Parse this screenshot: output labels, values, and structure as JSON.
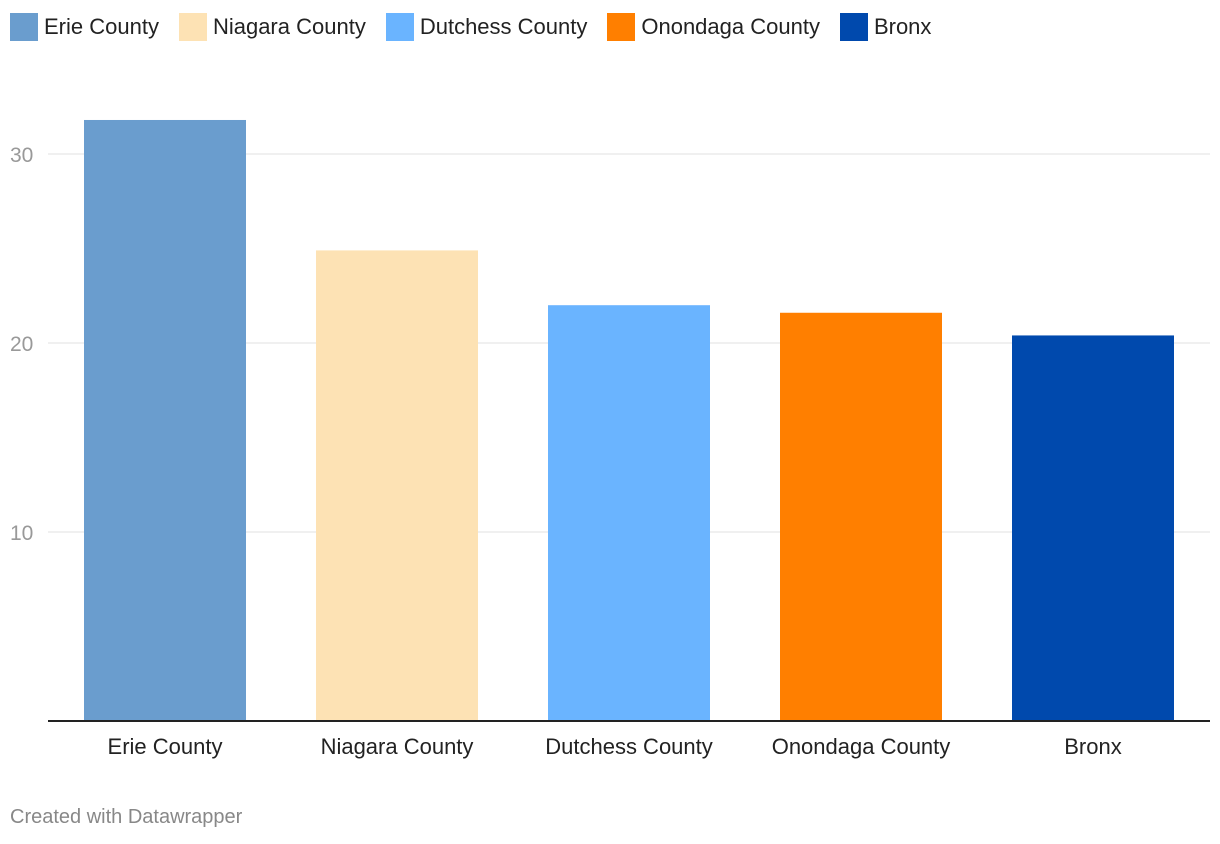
{
  "chart_data": {
    "type": "bar",
    "title": "",
    "xlabel": "",
    "ylabel": "",
    "categories": [
      "Erie County",
      "Niagara County",
      "Dutchess County",
      "Onondaga County",
      "Bronx"
    ],
    "values": [
      31.8,
      24.9,
      22.0,
      21.6,
      20.4
    ],
    "colors": [
      "#6a9dce",
      "#fde2b4",
      "#6ab4ff",
      "#ff7f00",
      "#0049ad"
    ],
    "ylim": [
      0,
      33
    ],
    "yticks": [
      10,
      20,
      30
    ],
    "legend": {
      "position": "top-left",
      "entries": [
        "Erie County",
        "Niagara County",
        "Dutchess County",
        "Onondaga County",
        "Bronx"
      ]
    },
    "grid": true
  },
  "footer": {
    "credit": "Created with Datawrapper"
  }
}
